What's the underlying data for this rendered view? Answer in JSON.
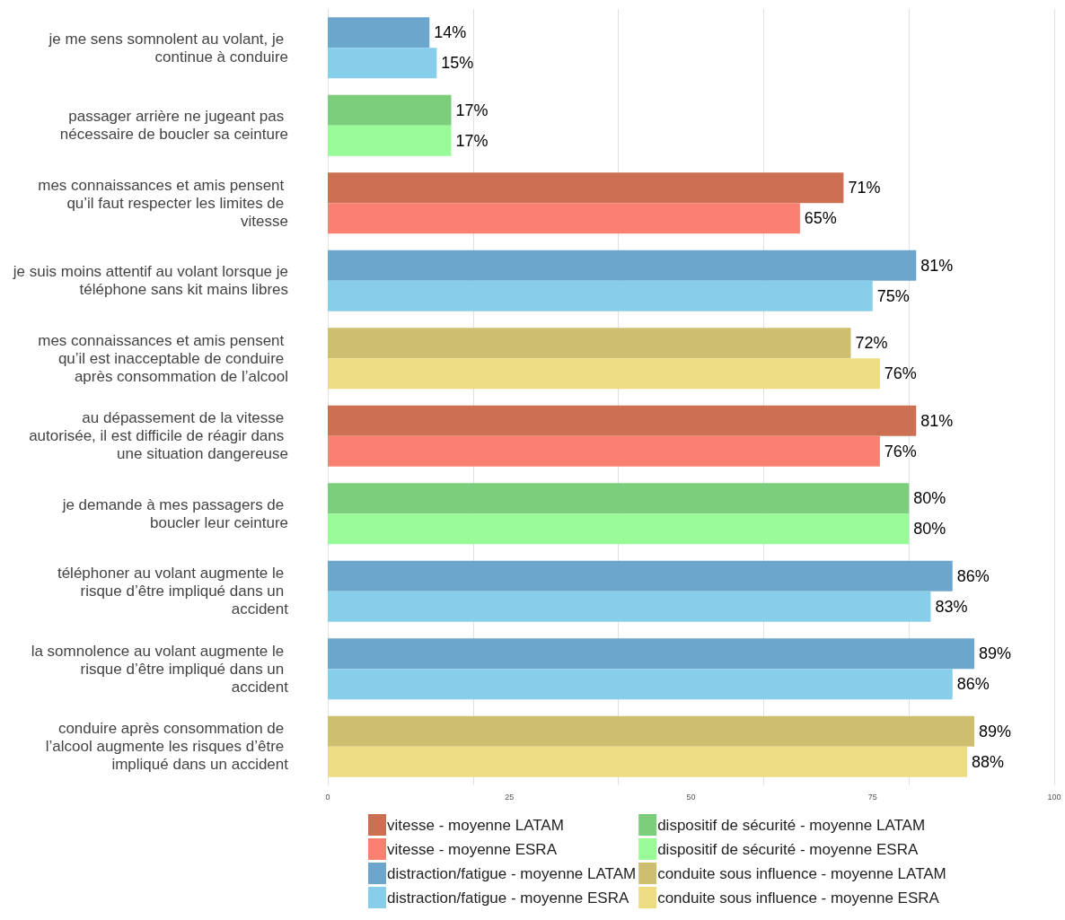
{
  "chart_data": {
    "type": "bar",
    "orientation": "horizontal",
    "categories": [
      "je me sens somnolent au volant, je continue à conduire",
      "passager arrière ne jugeant pas nécessaire de boucler sa ceinture",
      "mes connaissances et amis pensent qu’il faut respecter les limites de vitesse",
      "je suis moins attentif au volant lorsque je téléphone sans kit mains libres",
      "mes connaissances et amis pensent qu’il est inacceptable de conduire après consommation de l’alcool",
      "au dépassement de la vitesse autorisée, il est difficile de réagir dans une situation dangereuse",
      "je demande à mes passagers de boucler leur ceinture",
      "téléphoner au volant augmente le risque d’être impliqué dans un accident",
      "la somnolence au volant augmente le risque d’être impliqué dans un accident",
      "conduire après consommation de l’alcool augmente les risques d’être impliqué dans un accident"
    ],
    "series": [
      {
        "name": "vitesse - moyenne LATAM",
        "color": "#cd6f53",
        "values": [
          null,
          null,
          71,
          null,
          null,
          81,
          null,
          null,
          null,
          null
        ],
        "value_labels": [
          null,
          null,
          "71%",
          null,
          null,
          "81%",
          null,
          null,
          null,
          null
        ]
      },
      {
        "name": "vitesse - moyenne ESRA",
        "color": "#fa8072",
        "values": [
          null,
          null,
          65,
          null,
          null,
          76,
          null,
          null,
          null,
          null
        ],
        "value_labels": [
          null,
          null,
          "65%",
          null,
          null,
          "76%",
          null,
          null,
          null,
          null
        ]
      },
      {
        "name": "distraction/fatigue - moyenne LATAM",
        "color": "#6ca6cd",
        "values": [
          14,
          null,
          null,
          81,
          null,
          null,
          null,
          86,
          89,
          null
        ],
        "value_labels": [
          "14%",
          null,
          null,
          "81%",
          null,
          null,
          null,
          "86%",
          "89%",
          null
        ]
      },
      {
        "name": "distraction/fatigue - moyenne ESRA",
        "color": "#87ceeb",
        "values": [
          15,
          null,
          null,
          75,
          null,
          null,
          null,
          83,
          86,
          null
        ],
        "value_labels": [
          "15%",
          null,
          null,
          "75%",
          null,
          null,
          null,
          "83%",
          "86%",
          null
        ]
      },
      {
        "name": "dispositif de sécurité - moyenne LATAM",
        "color": "#7ccd7c",
        "values": [
          null,
          17,
          null,
          null,
          null,
          null,
          80,
          null,
          null,
          null
        ],
        "value_labels": [
          null,
          "17%",
          null,
          null,
          null,
          null,
          "80%",
          null,
          null,
          null
        ]
      },
      {
        "name": "dispositif de sécurité - moyenne ESRA",
        "color": "#98fb98",
        "values": [
          null,
          17,
          null,
          null,
          null,
          null,
          80,
          null,
          null,
          null
        ],
        "value_labels": [
          null,
          "17%",
          null,
          null,
          null,
          null,
          "80%",
          null,
          null,
          null
        ]
      },
      {
        "name": "conduite sous influence - moyenne LATAM",
        "color": "#cdbe70",
        "values": [
          null,
          null,
          null,
          null,
          72,
          null,
          null,
          null,
          null,
          89
        ],
        "value_labels": [
          null,
          null,
          null,
          null,
          "72%",
          null,
          null,
          null,
          null,
          "89%"
        ]
      },
      {
        "name": "conduite sous influence - moyenne ESRA",
        "color": "#eedc82",
        "values": [
          null,
          null,
          null,
          null,
          76,
          null,
          null,
          null,
          null,
          88
        ],
        "value_labels": [
          null,
          null,
          null,
          null,
          "76%",
          null,
          null,
          null,
          null,
          "88%"
        ]
      }
    ],
    "xlim": [
      0,
      100
    ],
    "xticks": [
      0,
      25,
      50,
      75,
      100
    ],
    "grid": "x",
    "legend": "bottom"
  }
}
